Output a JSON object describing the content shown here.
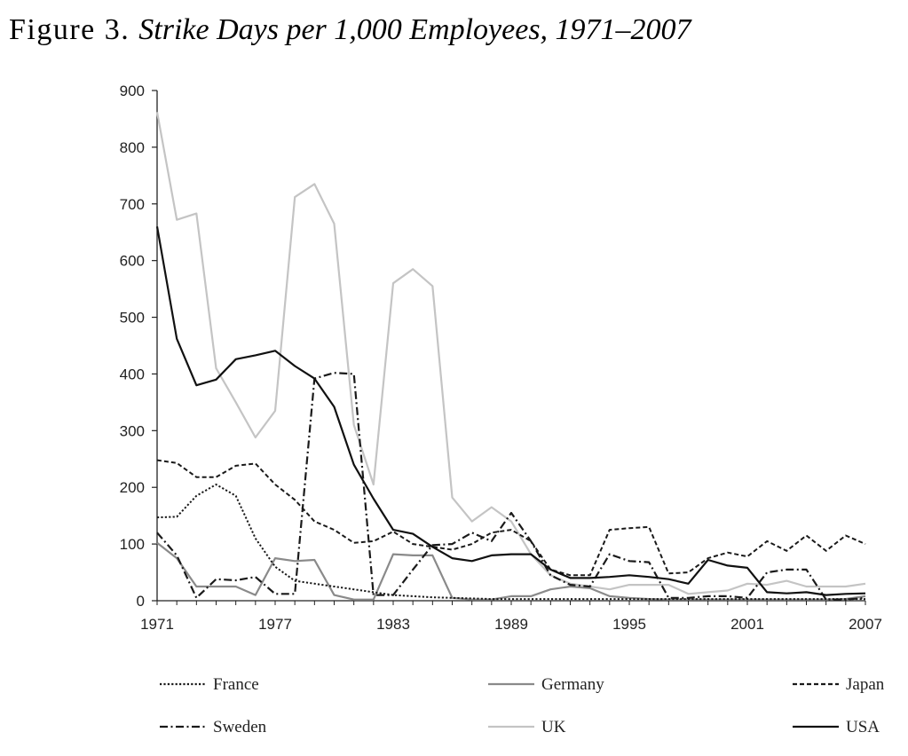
{
  "chart_data": {
    "type": "line",
    "title_lead": "Figure 3.",
    "title": "Strike Days per 1,000 Employees, 1971–2007",
    "xlabel": "",
    "ylabel": "",
    "xlim": [
      1971,
      2007
    ],
    "ylim": [
      0,
      900
    ],
    "x_ticks": [
      "1971",
      "1977",
      "1983",
      "1989",
      "1995",
      "2001",
      "2007"
    ],
    "y_ticks": [
      "0",
      "100",
      "200",
      "300",
      "400",
      "500",
      "600",
      "700",
      "800",
      "900"
    ],
    "grid": false,
    "legend_position": "bottom",
    "x": [
      1971,
      1972,
      1973,
      1974,
      1975,
      1976,
      1977,
      1978,
      1979,
      1980,
      1981,
      1982,
      1983,
      1984,
      1985,
      1986,
      1987,
      1988,
      1989,
      1990,
      1991,
      1992,
      1993,
      1994,
      1995,
      1996,
      1997,
      1998,
      1999,
      2000,
      2001,
      2002,
      2003,
      2004,
      2005,
      2006,
      2007
    ],
    "series": [
      {
        "name": "France",
        "style": "dotted",
        "color": "#1a1a1a",
        "values": [
          147,
          148,
          185,
          205,
          185,
          110,
          60,
          35,
          30,
          25,
          20,
          15,
          10,
          8,
          6,
          5,
          4,
          3,
          3,
          3,
          3,
          3,
          3,
          3,
          3,
          3,
          3,
          3,
          3,
          3,
          3,
          3,
          3,
          3,
          3,
          3,
          3
        ]
      },
      {
        "name": "Germany",
        "style": "solid",
        "color": "#8a8a8a",
        "values": [
          102,
          75,
          25,
          25,
          25,
          10,
          75,
          70,
          72,
          10,
          2,
          2,
          82,
          80,
          80,
          5,
          2,
          2,
          8,
          8,
          20,
          25,
          22,
          8,
          5,
          3,
          2,
          2,
          2,
          2,
          2,
          2,
          2,
          2,
          2,
          3,
          8
        ]
      },
      {
        "name": "Japan",
        "style": "dashed",
        "color": "#1a1a1a",
        "values": [
          248,
          243,
          218,
          218,
          238,
          242,
          205,
          178,
          140,
          125,
          102,
          105,
          122,
          100,
          95,
          90,
          100,
          120,
          125,
          105,
          55,
          45,
          45,
          125,
          128,
          130,
          48,
          50,
          75,
          85,
          78,
          105,
          88,
          115,
          88,
          115,
          100
        ]
      },
      {
        "name": "Sweden",
        "style": "dashdot",
        "color": "#1a1a1a",
        "values": [
          120,
          80,
          5,
          38,
          36,
          42,
          12,
          12,
          392,
          402,
          400,
          10,
          10,
          55,
          98,
          100,
          120,
          105,
          155,
          105,
          45,
          28,
          25,
          82,
          70,
          68,
          5,
          5,
          8,
          8,
          5,
          50,
          55,
          55,
          2,
          2,
          5
        ]
      },
      {
        "name": "UK",
        "style": "solid",
        "color": "#c4c4c4",
        "values": [
          862,
          672,
          683,
          410,
          350,
          288,
          335,
          712,
          735,
          665,
          310,
          205,
          560,
          585,
          555,
          182,
          140,
          165,
          140,
          82,
          45,
          30,
          25,
          20,
          28,
          28,
          28,
          12,
          15,
          18,
          30,
          28,
          35,
          25,
          25,
          25,
          30
        ]
      },
      {
        "name": "USA",
        "style": "solid",
        "color": "#111111",
        "values": [
          660,
          462,
          380,
          390,
          426,
          433,
          441,
          414,
          392,
          342,
          240,
          180,
          125,
          118,
          95,
          75,
          70,
          80,
          82,
          82,
          55,
          40,
          40,
          42,
          45,
          42,
          38,
          30,
          72,
          62,
          58,
          15,
          13,
          15,
          10,
          12,
          13
        ]
      }
    ]
  }
}
